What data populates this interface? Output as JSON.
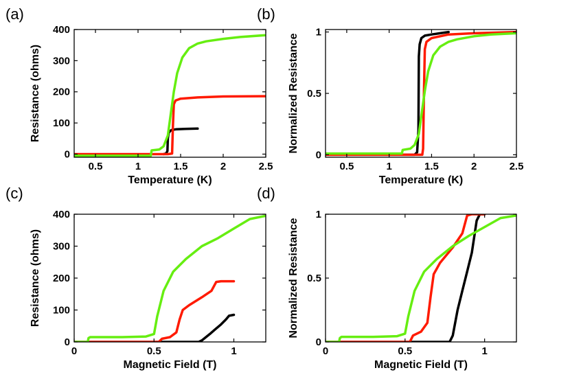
{
  "colors": {
    "black": "#000000",
    "red": "#ff1a00",
    "green": "#66ee11"
  },
  "chart_data": [
    {
      "panel": "(a)",
      "type": "line",
      "xlabel": "Temperature (K)",
      "ylabel": "Resistance (ohms)",
      "xlim": [
        0.25,
        2.5
      ],
      "ylim": [
        -10,
        400
      ],
      "xticks": [
        0.5,
        1,
        1.5,
        2,
        2.5
      ],
      "xtick_labels": [
        "0.5",
        "1",
        "1.5",
        "2",
        "2.5"
      ],
      "yticks": [
        0,
        100,
        200,
        300,
        400
      ],
      "ytick_labels": [
        "0",
        "100",
        "200",
        "300",
        "400"
      ],
      "series": [
        {
          "name": "black",
          "color": "#000000",
          "x": [
            1.3,
            1.33,
            1.345,
            1.35,
            1.36,
            1.38,
            1.4,
            1.45,
            1.55,
            1.7
          ],
          "y": [
            0,
            2,
            10,
            50,
            68,
            75,
            78,
            80,
            81,
            82
          ]
        },
        {
          "name": "red",
          "color": "#ff1a00",
          "x": [
            0.25,
            1.0,
            1.35,
            1.4,
            1.41,
            1.42,
            1.44,
            1.5,
            1.7,
            2.0,
            2.5
          ],
          "y": [
            0,
            0,
            0,
            2,
            90,
            160,
            172,
            178,
            182,
            185,
            186
          ]
        },
        {
          "name": "green",
          "color": "#66ee11",
          "x": [
            0.25,
            1.0,
            1.15,
            1.16,
            1.25,
            1.3,
            1.35,
            1.38,
            1.42,
            1.46,
            1.52,
            1.6,
            1.7,
            1.8,
            2.0,
            2.2,
            2.5
          ],
          "y": [
            -5,
            -5,
            -5,
            12,
            15,
            25,
            60,
            120,
            200,
            260,
            310,
            340,
            355,
            362,
            370,
            376,
            382
          ]
        }
      ]
    },
    {
      "panel": "(b)",
      "type": "line",
      "xlabel": "Temperature (K)",
      "ylabel": "Normalized Resistance",
      "xlim": [
        0.25,
        2.5
      ],
      "ylim": [
        -0.02,
        1.02
      ],
      "xticks": [
        0.5,
        1,
        1.5,
        2,
        2.5
      ],
      "xtick_labels": [
        "0.5",
        "1",
        "1.5",
        "2",
        "2.5"
      ],
      "yticks": [
        0,
        0.5,
        1
      ],
      "ytick_labels": [
        "0",
        "0.5",
        "1"
      ],
      "series": [
        {
          "name": "black",
          "color": "#000000",
          "x": [
            0.25,
            1.3,
            1.33,
            1.345,
            1.35,
            1.36,
            1.38,
            1.42,
            1.5,
            1.6,
            1.7
          ],
          "y": [
            0,
            0,
            0.02,
            0.2,
            0.8,
            0.9,
            0.95,
            0.97,
            0.98,
            0.99,
            1.0
          ]
        },
        {
          "name": "red",
          "color": "#ff1a00",
          "x": [
            0.25,
            1.39,
            1.4,
            1.41,
            1.42,
            1.44,
            1.5,
            1.7,
            2.0,
            2.5
          ],
          "y": [
            0,
            0,
            0.05,
            0.5,
            0.86,
            0.92,
            0.95,
            0.98,
            0.99,
            1.0
          ]
        },
        {
          "name": "green",
          "color": "#66ee11",
          "x": [
            0.25,
            1.15,
            1.16,
            1.25,
            1.3,
            1.35,
            1.38,
            1.42,
            1.46,
            1.52,
            1.6,
            1.7,
            1.8,
            2.0,
            2.2,
            2.5
          ],
          "y": [
            0.01,
            0.01,
            0.04,
            0.05,
            0.08,
            0.17,
            0.32,
            0.52,
            0.68,
            0.81,
            0.88,
            0.92,
            0.94,
            0.965,
            0.98,
            0.99
          ]
        }
      ]
    },
    {
      "panel": "(c)",
      "type": "line",
      "xlabel": "Magnetic Field (T)",
      "ylabel": "Resistance (ohms)",
      "xlim": [
        0,
        1.2
      ],
      "ylim": [
        0,
        400
      ],
      "xticks": [
        0,
        0.5,
        1
      ],
      "xtick_labels": [
        "0",
        "0.5",
        "1"
      ],
      "yticks": [
        0,
        100,
        200,
        300,
        400
      ],
      "ytick_labels": [
        "0",
        "100",
        "200",
        "300",
        "400"
      ],
      "series": [
        {
          "name": "black",
          "color": "#000000",
          "x": [
            0,
            0.78,
            0.8,
            0.85,
            0.88,
            0.92,
            0.95,
            0.97,
            1.0
          ],
          "y": [
            0,
            0,
            5,
            25,
            38,
            55,
            70,
            82,
            85
          ]
        },
        {
          "name": "red",
          "color": "#ff1a00",
          "x": [
            0,
            0.53,
            0.55,
            0.6,
            0.64,
            0.66,
            0.68,
            0.72,
            0.8,
            0.86,
            0.89,
            0.92,
            1.0
          ],
          "y": [
            0,
            0,
            10,
            15,
            30,
            70,
            100,
            115,
            140,
            160,
            188,
            190,
            190
          ]
        },
        {
          "name": "green",
          "color": "#66ee11",
          "x": [
            0,
            0.085,
            0.09,
            0.1,
            0.3,
            0.45,
            0.5,
            0.52,
            0.56,
            0.62,
            0.7,
            0.8,
            0.9,
            1.0,
            1.1,
            1.2
          ],
          "y": [
            0,
            0,
            12,
            15,
            15,
            17,
            25,
            80,
            160,
            220,
            260,
            300,
            325,
            355,
            385,
            395
          ]
        }
      ]
    },
    {
      "panel": "(d)",
      "type": "line",
      "xlabel": "Magnetic Field (T)",
      "ylabel": "Normalized Resistance",
      "xlim": [
        0,
        1.2
      ],
      "ylim": [
        0,
        1
      ],
      "xticks": [
        0,
        0.5,
        1
      ],
      "xtick_labels": [
        "0",
        "0.5",
        "1"
      ],
      "yticks": [
        0,
        0.5,
        1
      ],
      "ytick_labels": [
        "0",
        "0.5",
        "1"
      ],
      "series": [
        {
          "name": "black",
          "color": "#000000",
          "x": [
            0,
            0.78,
            0.8,
            0.83,
            0.86,
            0.89,
            0.92,
            0.95,
            0.97,
            1.0
          ],
          "y": [
            0,
            0,
            0.05,
            0.25,
            0.4,
            0.55,
            0.7,
            0.95,
            1.0,
            1.0
          ]
        },
        {
          "name": "red",
          "color": "#ff1a00",
          "x": [
            0,
            0.53,
            0.55,
            0.6,
            0.64,
            0.66,
            0.68,
            0.72,
            0.8,
            0.86,
            0.89,
            0.92,
            1.0
          ],
          "y": [
            0,
            0,
            0.05,
            0.08,
            0.15,
            0.35,
            0.53,
            0.62,
            0.74,
            0.85,
            0.99,
            1.0,
            1.0
          ]
        },
        {
          "name": "green",
          "color": "#66ee11",
          "x": [
            0,
            0.085,
            0.09,
            0.1,
            0.3,
            0.45,
            0.5,
            0.52,
            0.56,
            0.62,
            0.7,
            0.8,
            0.9,
            1.0,
            1.1,
            1.2
          ],
          "y": [
            0,
            0,
            0.03,
            0.04,
            0.04,
            0.045,
            0.065,
            0.2,
            0.4,
            0.55,
            0.65,
            0.75,
            0.83,
            0.9,
            0.97,
            0.99
          ]
        }
      ]
    }
  ]
}
